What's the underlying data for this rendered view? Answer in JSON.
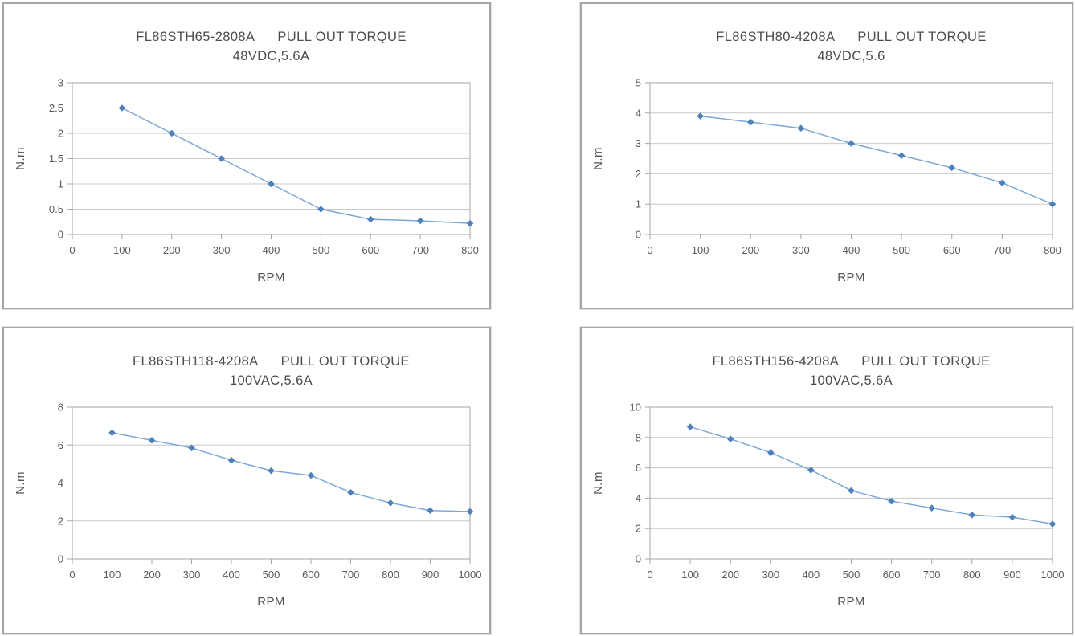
{
  "page": {
    "description": "Stepper motor pull-out torque curve datasheet, four line charts"
  },
  "colors": {
    "series_line": "#7da7d9",
    "marker_fill": "#4e80bc",
    "gridline": "#c9c9c9",
    "axis": "#a6a6a6",
    "plot_border": "#a6a6a6",
    "title_text": "#4c4c4c",
    "tick_text": "#595959",
    "panel_border": "#a5a5a9",
    "background": "#ffffff"
  },
  "chart_data": [
    {
      "type": "line",
      "title_model": "FL86STH65-2808A",
      "title_label": "PULL OUT TORQUE",
      "subtitle": "48VDC,5.6A",
      "xlabel": "RPM",
      "ylabel": "N.m",
      "x": [
        100,
        200,
        300,
        400,
        500,
        600,
        700,
        800
      ],
      "values": [
        2.5,
        2.0,
        1.5,
        1.0,
        0.5,
        0.3,
        0.27,
        0.22
      ],
      "xlim": [
        0,
        800
      ],
      "xtick_step": 100,
      "ylim": [
        0,
        3
      ],
      "ytick_step": 0.5,
      "grid": true,
      "legend": "none"
    },
    {
      "type": "line",
      "title_model": "FL86STH80-4208A",
      "title_label": "PULL OUT TORQUE",
      "subtitle": "48VDC,5.6",
      "xlabel": "RPM",
      "ylabel": "N.m",
      "x": [
        100,
        200,
        300,
        400,
        500,
        600,
        700,
        800
      ],
      "values": [
        3.9,
        3.7,
        3.5,
        3.0,
        2.6,
        2.2,
        1.7,
        1.0
      ],
      "xlim": [
        0,
        800
      ],
      "xtick_step": 100,
      "ylim": [
        0,
        5
      ],
      "ytick_step": 1,
      "grid": true,
      "legend": "none"
    },
    {
      "type": "line",
      "title_model": "FL86STH118-4208A",
      "title_label": "PULL OUT TORQUE",
      "subtitle": "100VAC,5.6A",
      "xlabel": "RPM",
      "ylabel": "N.m",
      "x": [
        100,
        200,
        300,
        400,
        500,
        600,
        700,
        800,
        900,
        1000
      ],
      "values": [
        6.65,
        6.25,
        5.85,
        5.2,
        4.65,
        4.4,
        3.5,
        2.95,
        2.55,
        2.5
      ],
      "xlim": [
        0,
        1000
      ],
      "xtick_step": 100,
      "ylim": [
        0,
        8
      ],
      "ytick_step": 2,
      "grid": true,
      "legend": "none"
    },
    {
      "type": "line",
      "title_model": "FL86STH156-4208A",
      "title_label": "PULL OUT TORQUE",
      "subtitle": "100VAC,5.6A",
      "xlabel": "RPM",
      "ylabel": "N.m",
      "x": [
        100,
        200,
        300,
        400,
        500,
        600,
        700,
        800,
        900,
        1000
      ],
      "values": [
        8.7,
        7.9,
        7.0,
        5.85,
        4.5,
        3.8,
        3.35,
        2.9,
        2.75,
        2.3
      ],
      "xlim": [
        0,
        1000
      ],
      "xtick_step": 100,
      "ylim": [
        0,
        10
      ],
      "ytick_step": 2,
      "grid": true,
      "legend": "none"
    }
  ]
}
